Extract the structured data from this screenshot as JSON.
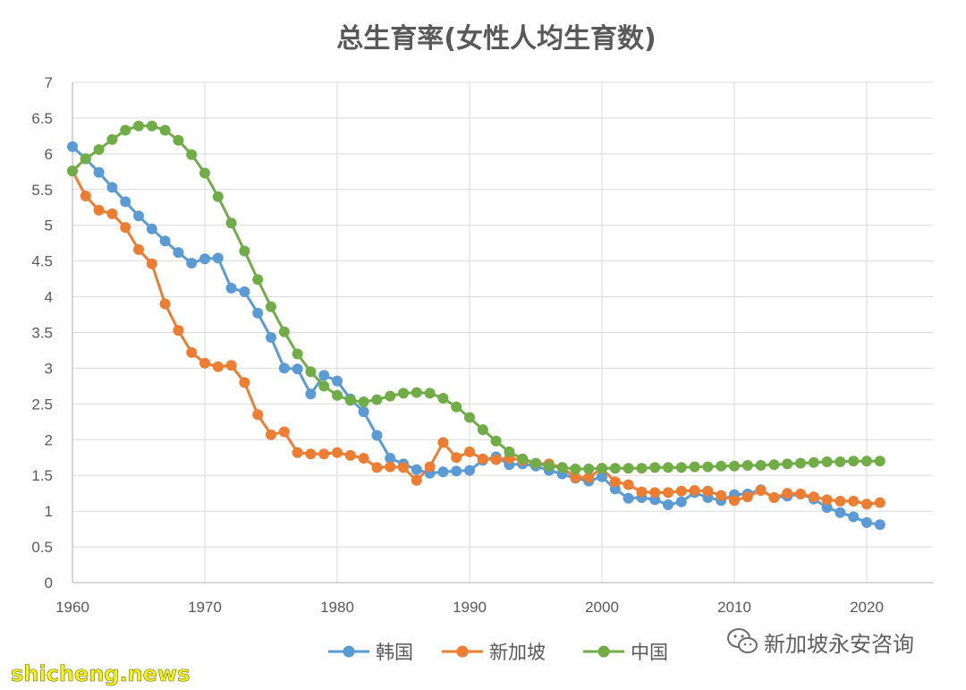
{
  "chart_data": {
    "type": "line",
    "title": "总生育率(女性人均生育数)",
    "xlabel": "",
    "ylabel": "",
    "xlim": [
      1960,
      2025
    ],
    "ylim": [
      0,
      7
    ],
    "x_ticks": [
      "1960",
      "1970",
      "1980",
      "1990",
      "2000",
      "2010",
      "2020"
    ],
    "y_ticks": [
      "0",
      "0.5",
      "1",
      "1.5",
      "2",
      "2.5",
      "3",
      "3.5",
      "4",
      "4.5",
      "5",
      "5.5",
      "6",
      "6.5",
      "7"
    ],
    "grid": true,
    "legend_position": "bottom",
    "x": [
      1960,
      1961,
      1962,
      1963,
      1964,
      1965,
      1966,
      1967,
      1968,
      1969,
      1970,
      1971,
      1972,
      1973,
      1974,
      1975,
      1976,
      1977,
      1978,
      1979,
      1980,
      1981,
      1982,
      1983,
      1984,
      1985,
      1986,
      1987,
      1988,
      1989,
      1990,
      1991,
      1992,
      1993,
      1994,
      1995,
      1996,
      1997,
      1998,
      1999,
      2000,
      2001,
      2002,
      2003,
      2004,
      2005,
      2006,
      2007,
      2008,
      2009,
      2010,
      2011,
      2012,
      2013,
      2014,
      2015,
      2016,
      2017,
      2018,
      2019,
      2020,
      2021
    ],
    "series": [
      {
        "name": "韩国",
        "color": "#5b9bd5",
        "values": [
          6.1,
          5.93,
          5.74,
          5.53,
          5.33,
          5.13,
          4.95,
          4.78,
          4.62,
          4.47,
          4.53,
          4.54,
          4.12,
          4.07,
          3.77,
          3.43,
          3.0,
          2.99,
          2.64,
          2.9,
          2.82,
          2.57,
          2.39,
          2.06,
          1.74,
          1.66,
          1.58,
          1.53,
          1.55,
          1.56,
          1.57,
          1.71,
          1.76,
          1.65,
          1.66,
          1.63,
          1.57,
          1.52,
          1.46,
          1.42,
          1.48,
          1.31,
          1.18,
          1.19,
          1.16,
          1.09,
          1.13,
          1.26,
          1.19,
          1.15,
          1.23,
          1.24,
          1.3,
          1.19,
          1.21,
          1.24,
          1.17,
          1.05,
          0.98,
          0.92,
          0.84,
          0.81
        ]
      },
      {
        "name": "新加坡",
        "color": "#ed7d31",
        "values": [
          5.76,
          5.41,
          5.21,
          5.16,
          4.97,
          4.66,
          4.46,
          3.9,
          3.53,
          3.22,
          3.07,
          3.02,
          3.04,
          2.8,
          2.35,
          2.07,
          2.11,
          1.82,
          1.8,
          1.8,
          1.82,
          1.78,
          1.74,
          1.61,
          1.62,
          1.61,
          1.43,
          1.62,
          1.96,
          1.75,
          1.83,
          1.73,
          1.72,
          1.74,
          1.71,
          1.67,
          1.66,
          1.61,
          1.47,
          1.47,
          1.6,
          1.41,
          1.37,
          1.27,
          1.26,
          1.26,
          1.28,
          1.29,
          1.28,
          1.22,
          1.15,
          1.2,
          1.29,
          1.19,
          1.25,
          1.24,
          1.2,
          1.16,
          1.14,
          1.14,
          1.1,
          1.12
        ]
      },
      {
        "name": "中国",
        "color": "#70ad47",
        "values": [
          5.76,
          5.93,
          6.06,
          6.2,
          6.33,
          6.39,
          6.39,
          6.33,
          6.19,
          5.99,
          5.73,
          5.4,
          5.03,
          4.64,
          4.24,
          3.86,
          3.51,
          3.2,
          2.95,
          2.75,
          2.62,
          2.55,
          2.53,
          2.56,
          2.61,
          2.65,
          2.66,
          2.65,
          2.58,
          2.46,
          2.31,
          2.14,
          1.98,
          1.83,
          1.73,
          1.67,
          1.63,
          1.61,
          1.59,
          1.59,
          1.6,
          1.6,
          1.6,
          1.6,
          1.61,
          1.61,
          1.61,
          1.62,
          1.62,
          1.63,
          1.63,
          1.64,
          1.64,
          1.65,
          1.66,
          1.67,
          1.68,
          1.69,
          1.69,
          1.7,
          1.7,
          1.7
        ]
      }
    ]
  },
  "watermark": {
    "text": "新加坡永安咨询",
    "icon": "wechat-icon"
  },
  "site_watermark": {
    "text": "shicheng.news"
  }
}
